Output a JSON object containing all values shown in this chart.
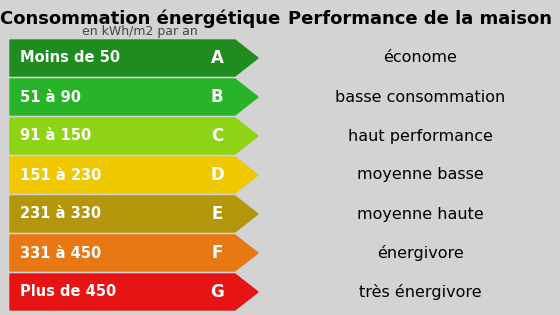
{
  "title_left": "Consommation énergétique",
  "subtitle_left": "en kWh/m2 par an",
  "title_right": "Performance de la maison",
  "background_color": "#d3d3d3",
  "rows": [
    {
      "label": "Moins de 50",
      "letter": "A",
      "color": "#1e8c1e",
      "performance": "économe"
    },
    {
      "label": "51 à 90",
      "letter": "B",
      "color": "#28b428",
      "performance": "basse consommation"
    },
    {
      "label": "91 à 150",
      "letter": "C",
      "color": "#8cd414",
      "performance": "haut performance"
    },
    {
      "label": "151 à 230",
      "letter": "D",
      "color": "#f0c800",
      "performance": "moyenne basse"
    },
    {
      "label": "231 à 330",
      "letter": "E",
      "color": "#b4960a",
      "performance": "moyenne haute"
    },
    {
      "label": "331 à 450",
      "letter": "F",
      "color": "#e87814",
      "performance": "énergivore"
    },
    {
      "label": "Plus de 450",
      "letter": "G",
      "color": "#e61414",
      "performance": "très énergivore"
    }
  ],
  "label_text_color": "#ffffff",
  "label_fontsize": 10.5,
  "letter_fontsize": 12,
  "performance_fontsize": 11.5,
  "title_fontsize": 13,
  "subtitle_fontsize": 9
}
